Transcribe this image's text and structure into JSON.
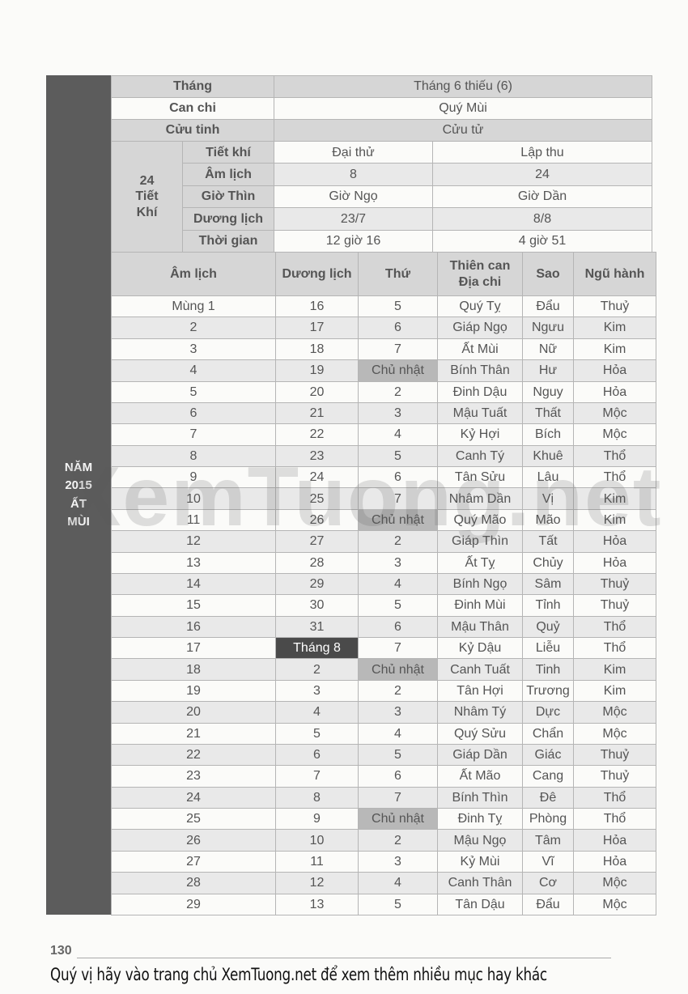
{
  "side_label": [
    "NĂM",
    "2015",
    "ẤT",
    "MÙI"
  ],
  "header": {
    "rows": [
      [
        "Tháng",
        "Tháng 6 thiếu (6)"
      ],
      [
        "Can chi",
        "Quý Mùi"
      ],
      [
        "Cửu tinh",
        "Cửu tử"
      ]
    ]
  },
  "solar_terms": {
    "label": [
      "24",
      "Tiết",
      "Khí"
    ],
    "rows": [
      [
        "Tiết khí",
        "Đại thử",
        "Lập thu"
      ],
      [
        "Âm lịch",
        "8",
        "24"
      ],
      [
        "Giờ Thìn",
        "Giờ Ngọ",
        "Giờ Dần"
      ],
      [
        "Dương lịch",
        "23/7",
        "8/8"
      ],
      [
        "Thời gian",
        "12 giờ 16",
        "4 giờ 51"
      ]
    ]
  },
  "table": {
    "columns": [
      [
        "Âm lịch"
      ],
      [
        "Dương lịch"
      ],
      [
        "Thứ"
      ],
      [
        "Thiên can",
        "Địa chi"
      ],
      [
        "Sao"
      ],
      [
        "Ngũ hành"
      ]
    ],
    "rows": [
      [
        "Mùng 1",
        "16",
        "5",
        "Quý Tỵ",
        "Đẩu",
        "Thuỷ"
      ],
      [
        "2",
        "17",
        "6",
        "Giáp Ngọ",
        "Ngưu",
        "Kim"
      ],
      [
        "3",
        "18",
        "7",
        "Ất Mùi",
        "Nữ",
        "Kim"
      ],
      [
        "4",
        "19",
        "Chủ nhật",
        "Bính Thân",
        "Hư",
        "Hỏa"
      ],
      [
        "5",
        "20",
        "2",
        "Đinh Dậu",
        "Nguy",
        "Hỏa"
      ],
      [
        "6",
        "21",
        "3",
        "Mậu Tuất",
        "Thất",
        "Mộc"
      ],
      [
        "7",
        "22",
        "4",
        "Kỷ Hợi",
        "Bích",
        "Mộc"
      ],
      [
        "8",
        "23",
        "5",
        "Canh Tý",
        "Khuê",
        "Thổ"
      ],
      [
        "9",
        "24",
        "6",
        "Tân Sửu",
        "Lâu",
        "Thổ"
      ],
      [
        "10",
        "25",
        "7",
        "Nhâm Dần",
        "Vị",
        "Kim"
      ],
      [
        "11",
        "26",
        "Chủ nhật",
        "Quý Mão",
        "Mão",
        "Kim"
      ],
      [
        "12",
        "27",
        "2",
        "Giáp Thìn",
        "Tất",
        "Hỏa"
      ],
      [
        "13",
        "28",
        "3",
        "Ất Tỵ",
        "Chủy",
        "Hỏa"
      ],
      [
        "14",
        "29",
        "4",
        "Bính Ngọ",
        "Sâm",
        "Thuỷ"
      ],
      [
        "15",
        "30",
        "5",
        "Đinh Mùi",
        "Tỉnh",
        "Thuỷ"
      ],
      [
        "16",
        "31",
        "6",
        "Mậu Thân",
        "Quỷ",
        "Thổ"
      ],
      [
        "17",
        "Tháng 8",
        "7",
        "Kỷ Dậu",
        "Liễu",
        "Thổ"
      ],
      [
        "18",
        "2",
        "Chủ nhật",
        "Canh Tuất",
        "Tinh",
        "Kim"
      ],
      [
        "19",
        "3",
        "2",
        "Tân Hợi",
        "Trương",
        "Kim"
      ],
      [
        "20",
        "4",
        "3",
        "Nhâm Tý",
        "Dực",
        "Mộc"
      ],
      [
        "21",
        "5",
        "4",
        "Quý Sửu",
        "Chẩn",
        "Mộc"
      ],
      [
        "22",
        "6",
        "5",
        "Giáp Dần",
        "Giác",
        "Thuỷ"
      ],
      [
        "23",
        "7",
        "6",
        "Ất Mão",
        "Cang",
        "Thuỷ"
      ],
      [
        "24",
        "8",
        "7",
        "Bính Thìn",
        "Đê",
        "Thổ"
      ],
      [
        "25",
        "9",
        "Chủ nhật",
        "Đinh Tỵ",
        "Phòng",
        "Thổ"
      ],
      [
        "26",
        "10",
        "2",
        "Mậu Ngọ",
        "Tâm",
        "Hỏa"
      ],
      [
        "27",
        "11",
        "3",
        "Kỷ Mùi",
        "Vĩ",
        "Hỏa"
      ],
      [
        "28",
        "12",
        "4",
        "Canh Thân",
        "Cơ",
        "Mộc"
      ],
      [
        "29",
        "13",
        "5",
        "Tân Dậu",
        "Đẩu",
        "Mộc"
      ]
    ]
  },
  "watermark": "XemTuong.net",
  "page_number": "130",
  "footer": "Quý vị hãy vào trang chủ XemTuong.net để xem thêm nhiều mục hay khác"
}
